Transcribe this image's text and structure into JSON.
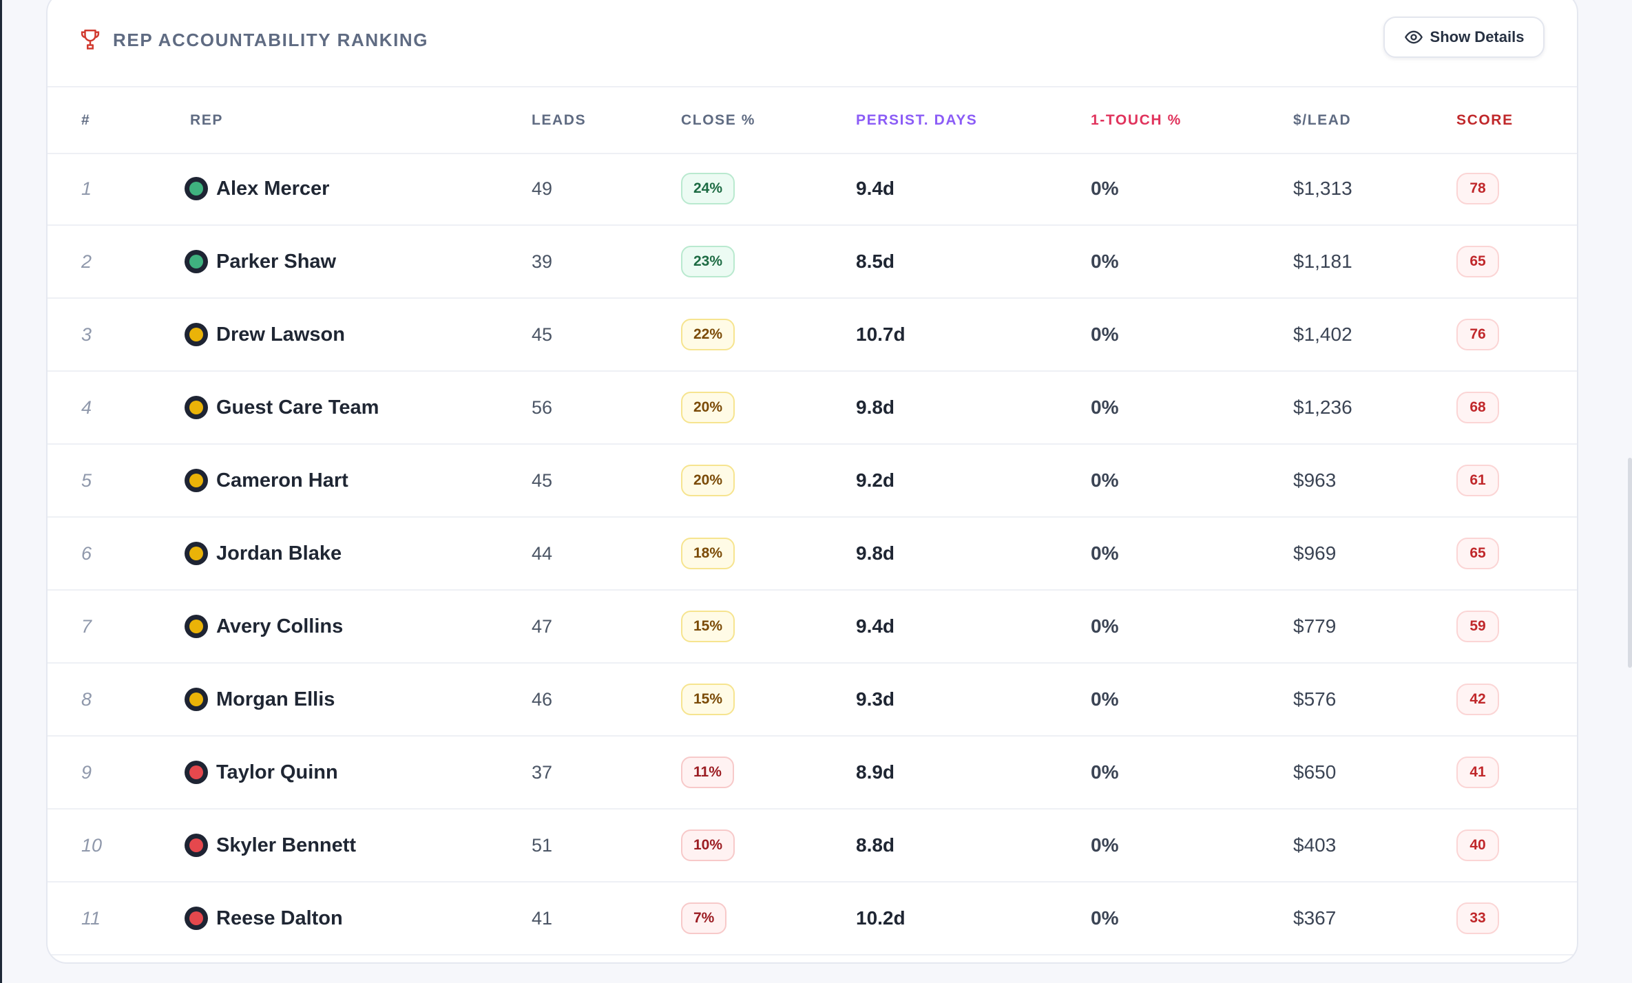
{
  "header": {
    "title": "REP ACCOUNTABILITY RANKING",
    "show_details_label": "Show Details"
  },
  "columns": {
    "rank": "#",
    "rep": "REP",
    "leads": "LEADS",
    "close": "CLOSE %",
    "persist": "PERSIST. DAYS",
    "one_touch": "1-TOUCH %",
    "per_lead": "$/LEAD",
    "score": "SCORE"
  },
  "column_colors": {
    "default": "#5f6b82",
    "persist": "#8b5cf6",
    "one_touch": "#e0335c",
    "score": "#c0282b"
  },
  "status_colors": {
    "green": "#3fb27f",
    "yellow": "#eab308",
    "red": "#e5484d"
  },
  "pill_styles": {
    "green": {
      "bg": "#ecfbf3",
      "border": "#b9e9cf",
      "text": "#1d6b43"
    },
    "yellow": {
      "bg": "#fffbe6",
      "border": "#f6e48f",
      "text": "#7a4a06"
    },
    "red": {
      "bg": "#fff2f2",
      "border": "#f7c9c9",
      "text": "#9b1c22"
    }
  },
  "rows": [
    {
      "rank": "1",
      "name": "Alex Mercer",
      "status": "green",
      "leads": "49",
      "close": "24%",
      "persist": "9.4d",
      "one_touch": "0%",
      "per_lead": "$1,313",
      "score": "78"
    },
    {
      "rank": "2",
      "name": "Parker Shaw",
      "status": "green",
      "leads": "39",
      "close": "23%",
      "persist": "8.5d",
      "one_touch": "0%",
      "per_lead": "$1,181",
      "score": "65"
    },
    {
      "rank": "3",
      "name": "Drew Lawson",
      "status": "yellow",
      "leads": "45",
      "close": "22%",
      "persist": "10.7d",
      "one_touch": "0%",
      "per_lead": "$1,402",
      "score": "76"
    },
    {
      "rank": "4",
      "name": "Guest Care Team",
      "status": "yellow",
      "leads": "56",
      "close": "20%",
      "persist": "9.8d",
      "one_touch": "0%",
      "per_lead": "$1,236",
      "score": "68"
    },
    {
      "rank": "5",
      "name": "Cameron Hart",
      "status": "yellow",
      "leads": "45",
      "close": "20%",
      "persist": "9.2d",
      "one_touch": "0%",
      "per_lead": "$963",
      "score": "61"
    },
    {
      "rank": "6",
      "name": "Jordan Blake",
      "status": "yellow",
      "leads": "44",
      "close": "18%",
      "persist": "9.8d",
      "one_touch": "0%",
      "per_lead": "$969",
      "score": "65"
    },
    {
      "rank": "7",
      "name": "Avery Collins",
      "status": "yellow",
      "leads": "47",
      "close": "15%",
      "persist": "9.4d",
      "one_touch": "0%",
      "per_lead": "$779",
      "score": "59"
    },
    {
      "rank": "8",
      "name": "Morgan Ellis",
      "status": "yellow",
      "leads": "46",
      "close": "15%",
      "persist": "9.3d",
      "one_touch": "0%",
      "per_lead": "$576",
      "score": "42"
    },
    {
      "rank": "9",
      "name": "Taylor Quinn",
      "status": "red",
      "leads": "37",
      "close": "11%",
      "persist": "8.9d",
      "one_touch": "0%",
      "per_lead": "$650",
      "score": "41"
    },
    {
      "rank": "10",
      "name": "Skyler Bennett",
      "status": "red",
      "leads": "51",
      "close": "10%",
      "persist": "8.8d",
      "one_touch": "0%",
      "per_lead": "$403",
      "score": "40"
    },
    {
      "rank": "11",
      "name": "Reese Dalton",
      "status": "red",
      "leads": "41",
      "close": "7%",
      "persist": "10.2d",
      "one_touch": "0%",
      "per_lead": "$367",
      "score": "33"
    }
  ]
}
